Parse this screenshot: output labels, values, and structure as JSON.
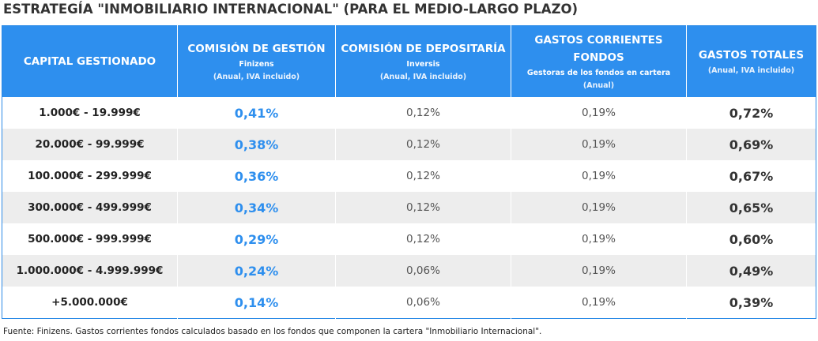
{
  "title": "ESTRATEGÍA \"INMOBILIARIO INTERNACIONAL\" (PARA EL MEDIO-LARGO PLAZO)",
  "headers": [
    {
      "main": "CAPITAL GESTIONADO",
      "sub": "",
      "note": ""
    },
    {
      "main": "COMISIÓN DE GESTIÓN",
      "sub": "Finizens",
      "note": "(Anual, IVA incluido)"
    },
    {
      "main": "COMISIÓN DE DEPOSITARÍA",
      "sub": "Inversis",
      "note": "(Anual, IVA incluido)"
    },
    {
      "main": "GASTOS CORRIENTES FONDOS",
      "sub": "Gestoras de los fondos en cartera",
      "note": "(Anual)"
    },
    {
      "main": "GASTOS TOTALES",
      "sub": "",
      "note": "(Anual, IVA incluido)"
    }
  ],
  "rows": [
    {
      "capital": "1.000€ - 19.999€",
      "gestion": "0,41%",
      "depositaria": "0,12%",
      "corrientes": "0,19%",
      "totales": "0,72%"
    },
    {
      "capital": "20.000€ - 99.999€",
      "gestion": "0,38%",
      "depositaria": "0,12%",
      "corrientes": "0,19%",
      "totales": "0,69%"
    },
    {
      "capital": "100.000€ - 299.999€",
      "gestion": "0,36%",
      "depositaria": "0,12%",
      "corrientes": "0,19%",
      "totales": "0,67%"
    },
    {
      "capital": "300.000€ - 499.999€",
      "gestion": "0,34%",
      "depositaria": "0,12%",
      "corrientes": "0,19%",
      "totales": "0,65%"
    },
    {
      "capital": "500.000€ - 999.999€",
      "gestion": "0,29%",
      "depositaria": "0,12%",
      "corrientes": "0,19%",
      "totales": "0,60%"
    },
    {
      "capital": "1.000.000€ - 4.999.999€",
      "gestion": "0,24%",
      "depositaria": "0,06%",
      "corrientes": "0,19%",
      "totales": "0,49%"
    },
    {
      "capital": "+5.000.000€",
      "gestion": "0,14%",
      "depositaria": "0,06%",
      "corrientes": "0,19%",
      "totales": "0,39%"
    }
  ],
  "footnote": "Fuente: Finizens. Gastos corrientes fondos calculados basado en los fondos que componen la cartera \"Inmobiliario Internacional\".",
  "colors": {
    "header_bg": "#2e8fee",
    "mgmt_text": "#2e8fee",
    "row_alt": "#ededed"
  }
}
